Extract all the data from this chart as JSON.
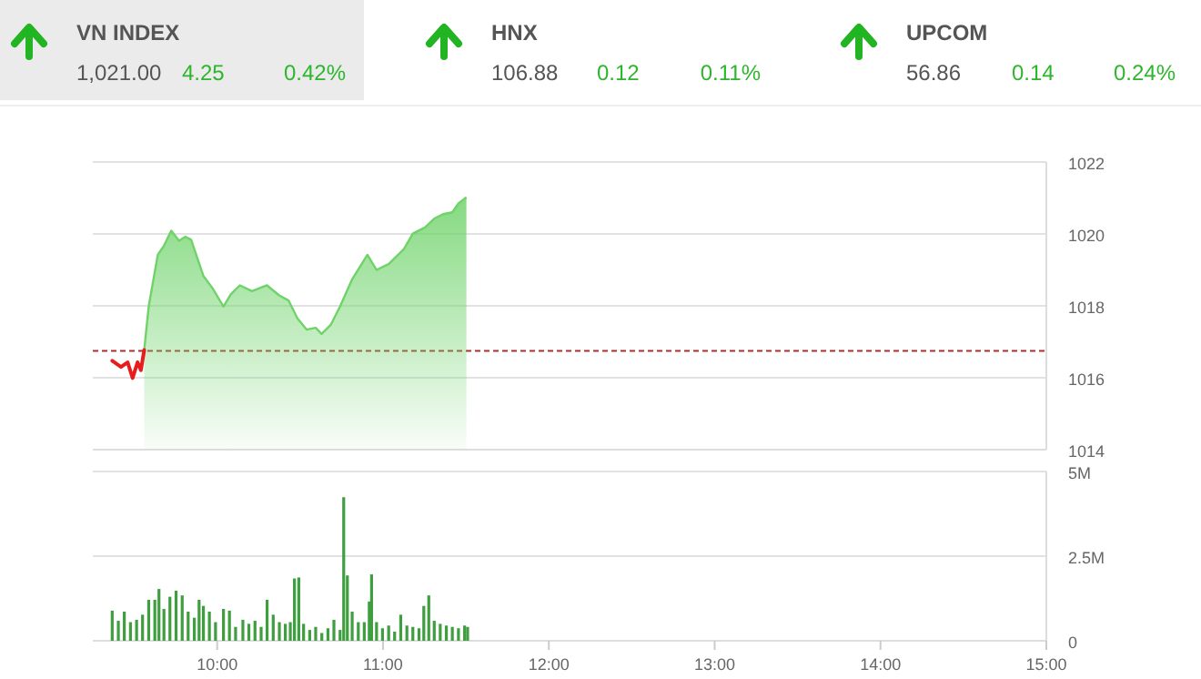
{
  "chart_data": [
    {
      "type": "other",
      "annotations": [
        "VN INDEX",
        "1,021.00",
        "4.25",
        "0.42%",
        "HNX",
        "106.88",
        "0.12",
        "0.11%",
        "UPCOM",
        "56.86",
        "0.14",
        "0.24%"
      ]
    },
    {
      "type": "area",
      "xlim": [
        9.25,
        15
      ],
      "ylim": [
        1014,
        1022
      ],
      "yticks": [
        1014,
        1016,
        1018,
        1020,
        1022
      ],
      "grid": "y",
      "tick_labels": "y",
      "ref_lines": [
        {
          "axis": "y",
          "value": 1016.75,
          "color": "#a83232",
          "line_style": "dashed"
        }
      ],
      "series": [
        {
          "type": "area",
          "color": "#6fd36a",
          "x": [
            9.56,
            9.587,
            9.642,
            9.679,
            9.723,
            9.77,
            9.807,
            9.843,
            9.88,
            9.917,
            9.972,
            10.038,
            10.082,
            10.137,
            10.21,
            10.3,
            10.374,
            10.43,
            10.484,
            10.539,
            10.594,
            10.63,
            10.686,
            10.741,
            10.814,
            10.906,
            10.961,
            11.034,
            11.126,
            11.18,
            11.253,
            11.31,
            11.363,
            11.418,
            11.455,
            11.503
          ],
          "values": [
            1016.77,
            1017.98,
            1019.42,
            1019.67,
            1020.09,
            1019.81,
            1019.92,
            1019.84,
            1019.33,
            1018.83,
            1018.49,
            1017.98,
            1018.32,
            1018.57,
            1018.41,
            1018.57,
            1018.29,
            1018.15,
            1017.65,
            1017.34,
            1017.39,
            1017.22,
            1017.48,
            1017.98,
            1018.74,
            1019.42,
            1019.0,
            1019.16,
            1019.58,
            1020.01,
            1020.18,
            1020.43,
            1020.55,
            1020.6,
            1020.85,
            1021.02
          ]
        },
        {
          "type": "line",
          "color": "#e81c1c",
          "x": [
            9.367,
            9.42,
            9.46,
            9.49,
            9.52,
            9.54,
            9.56
          ],
          "values": [
            1016.47,
            1016.3,
            1016.43,
            1015.99,
            1016.43,
            1016.21,
            1016.77
          ]
        }
      ]
    },
    {
      "type": "bar",
      "color": "#3f9e3f",
      "grid": "y",
      "x": [
        9.367,
        9.404,
        9.44,
        9.477,
        9.514,
        9.55,
        9.587,
        9.624,
        9.649,
        9.679,
        9.715,
        9.752,
        9.789,
        9.825,
        9.862,
        9.891,
        9.917,
        9.953,
        9.99,
        10.038,
        10.074,
        10.111,
        10.155,
        10.191,
        10.228,
        10.265,
        10.301,
        10.338,
        10.375,
        10.411,
        10.441,
        10.466,
        10.492,
        10.521,
        10.558,
        10.594,
        10.631,
        10.668,
        10.704,
        10.741,
        10.763,
        10.785,
        10.814,
        10.851,
        10.887,
        10.917,
        10.931,
        10.961,
        10.997,
        11.034,
        11.07,
        11.107,
        11.144,
        11.18,
        11.217,
        11.246,
        11.276,
        11.309,
        11.345,
        11.382,
        11.418,
        11.455,
        11.492,
        11.51
      ],
      "values": [
        0.89,
        0.59,
        0.86,
        0.55,
        0.62,
        0.77,
        1.21,
        1.21,
        1.53,
        0.94,
        1.3,
        1.48,
        1.34,
        0.86,
        0.68,
        1.21,
        1.03,
        0.86,
        0.55,
        0.94,
        0.89,
        0.41,
        0.62,
        0.5,
        0.59,
        0.41,
        1.21,
        0.77,
        0.55,
        0.5,
        0.55,
        1.84,
        1.87,
        0.5,
        0.32,
        0.41,
        0.23,
        0.37,
        0.62,
        0.32,
        4.24,
        1.93,
        0.86,
        0.55,
        0.55,
        1.16,
        1.96,
        0.55,
        0.37,
        0.45,
        0.27,
        0.77,
        0.45,
        0.41,
        0.37,
        1.03,
        1.34,
        0.59,
        0.5,
        0.45,
        0.41,
        0.37,
        0.45,
        0.41
      ],
      "xlim": [
        9.25,
        15
      ],
      "xticks": [
        {
          "value": 10,
          "label": "10:00"
        },
        {
          "value": 11,
          "label": "11:00"
        },
        {
          "value": 12,
          "label": "12:00"
        },
        {
          "value": 13,
          "label": "13:00"
        },
        {
          "value": 14,
          "label": "14:00"
        },
        {
          "value": 15,
          "label": "15:00"
        }
      ],
      "ylim": [
        0,
        5
      ],
      "yticks": [
        0,
        {
          "value": 2.5,
          "label": "2.5M"
        },
        {
          "value": 5,
          "label": "5M"
        }
      ]
    }
  ]
}
